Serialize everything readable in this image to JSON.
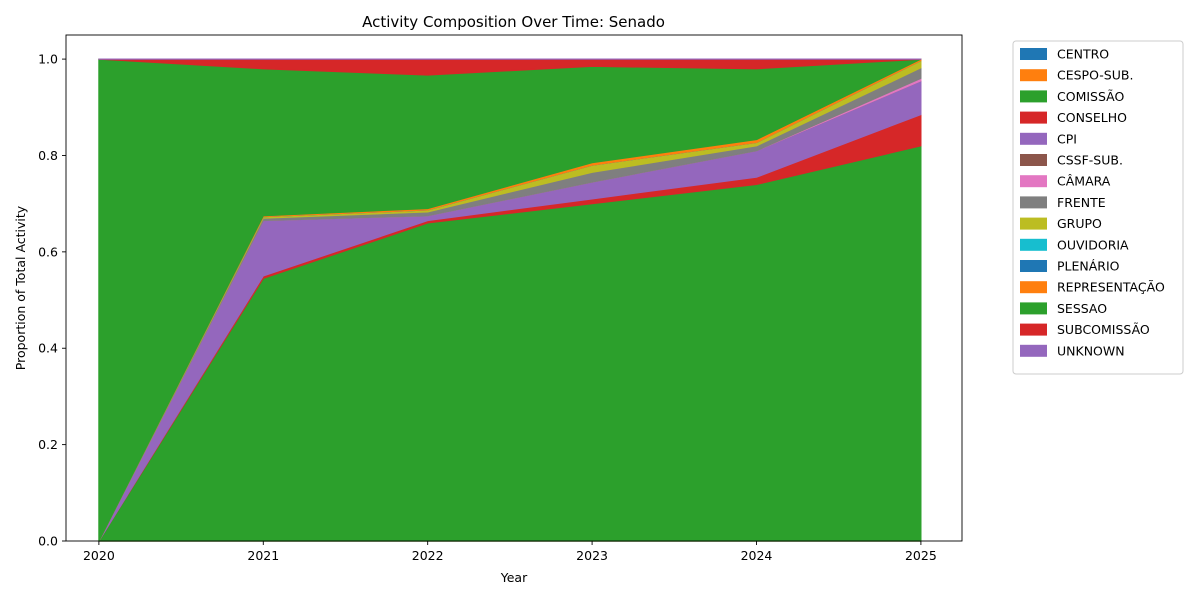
{
  "chart_data": {
    "type": "area",
    "stacked": true,
    "title": "Activity Composition Over Time: Senado",
    "xlabel": "Year",
    "ylabel": "Proportion of Total Activity",
    "x": [
      "2020",
      "2021",
      "2022",
      "2023",
      "2024",
      "2025"
    ],
    "xlim": [
      2019.8,
      2025.25
    ],
    "ylim": [
      0,
      1.05
    ],
    "yticks": [
      "0.0",
      "0.2",
      "0.4",
      "0.6",
      "0.8",
      "1.0"
    ],
    "grid": false,
    "legend_position": "outside-right",
    "series": [
      {
        "name": "CENTRO",
        "color": "#1f77b4",
        "values": [
          0,
          0,
          0,
          0,
          0,
          0
        ]
      },
      {
        "name": "CESPO-SUB.",
        "color": "#ff7f0e",
        "values": [
          0,
          0,
          0,
          0,
          0,
          0
        ]
      },
      {
        "name": "COMISSÃO",
        "color": "#2ca02c",
        "values": [
          0,
          0.545,
          0.66,
          0.7,
          0.74,
          0.82
        ]
      },
      {
        "name": "CONSELHO",
        "color": "#d62728",
        "values": [
          0,
          0.005,
          0.005,
          0.01,
          0.015,
          0.065
        ]
      },
      {
        "name": "CPI",
        "color": "#9467bd",
        "values": [
          0,
          0.115,
          0.01,
          0.035,
          0.055,
          0.07
        ]
      },
      {
        "name": "CSSF-SUB.",
        "color": "#8c564b",
        "values": [
          0,
          0,
          0,
          0,
          0,
          0
        ]
      },
      {
        "name": "CÂMARA",
        "color": "#e377c2",
        "values": [
          0,
          0,
          0,
          0,
          0,
          0.005
        ]
      },
      {
        "name": "FRENTE",
        "color": "#7f7f7f",
        "values": [
          0,
          0.005,
          0.008,
          0.02,
          0.01,
          0.022
        ]
      },
      {
        "name": "GRUPO",
        "color": "#bcbd22",
        "values": [
          0,
          0.003,
          0.004,
          0.015,
          0.007,
          0.015
        ]
      },
      {
        "name": "OUVIDORIA",
        "color": "#17becf",
        "values": [
          0,
          0,
          0,
          0,
          0,
          0
        ]
      },
      {
        "name": "PLENÁRIO",
        "color": "#1f77b4",
        "values": [
          0,
          0,
          0,
          0,
          0,
          0
        ]
      },
      {
        "name": "REPRESENTAÇÃO",
        "color": "#ff7f0e",
        "values": [
          0,
          0.002,
          0.003,
          0.005,
          0.006,
          0.003
        ]
      },
      {
        "name": "SESSAO",
        "color": "#2ca02c",
        "values": [
          1.0,
          0.305,
          0.277,
          0.2,
          0.147,
          0.0
        ]
      },
      {
        "name": "SUBCOMISSÃO",
        "color": "#d62728",
        "values": [
          0,
          0.02,
          0.033,
          0.015,
          0.02,
          0.0
        ]
      },
      {
        "name": "UNKNOWN",
        "color": "#9467bd",
        "values": [
          0,
          0,
          0,
          0,
          0,
          0
        ]
      }
    ]
  }
}
